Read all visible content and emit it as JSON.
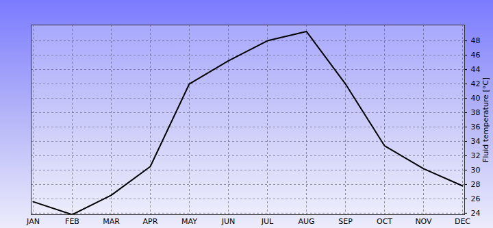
{
  "chart_data": {
    "type": "line",
    "y_label": "Fluid temperature [°C]",
    "categories": [
      "JAN",
      "FEB",
      "MAR",
      "APR",
      "MAY",
      "JUN",
      "JUL",
      "AUG",
      "SEP",
      "OCT",
      "NOV",
      "DEC"
    ],
    "values": [
      25.6,
      23.8,
      26.5,
      30.5,
      42.0,
      45.2,
      48.0,
      49.3,
      42.0,
      33.4,
      30.2,
      27.8
    ],
    "color": "#000000",
    "ylim": [
      23.8,
      50.2
    ],
    "yticks": [
      24,
      26,
      28,
      30,
      32,
      34,
      36,
      38,
      40,
      42,
      44,
      46,
      48
    ],
    "grid": true
  }
}
